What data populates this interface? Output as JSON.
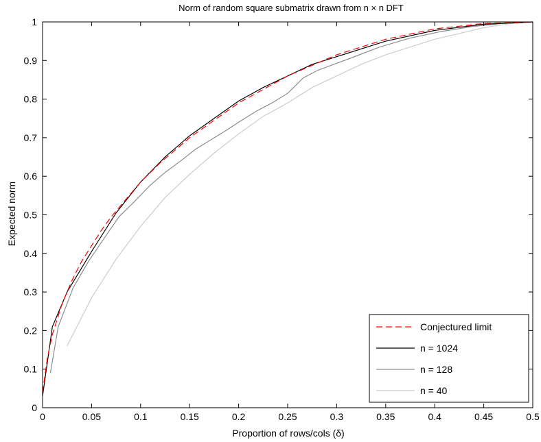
{
  "chart_data": {
    "type": "line",
    "title": "Norm of random square submatrix drawn from n × n DFT",
    "xlabel": "Proportion of rows/cols (δ)",
    "ylabel": "Expected norm",
    "xlim": [
      0,
      0.5
    ],
    "ylim": [
      0,
      1
    ],
    "xticks": [
      0,
      0.05,
      0.1,
      0.15,
      0.2,
      0.25,
      0.3,
      0.35,
      0.4,
      0.45,
      0.5
    ],
    "xtick_labels": [
      "0",
      "0.05",
      "0.1",
      "0.15",
      "0.2",
      "0.25",
      "0.3",
      "0.35",
      "0.4",
      "0.45",
      "0.5"
    ],
    "yticks": [
      0,
      0.1,
      0.2,
      0.3,
      0.4,
      0.5,
      0.6,
      0.7,
      0.8,
      0.9,
      1
    ],
    "ytick_labels": [
      "0",
      "0.1",
      "0.2",
      "0.3",
      "0.4",
      "0.5",
      "0.6",
      "0.7",
      "0.8",
      "0.9",
      "1"
    ],
    "grid": false,
    "legend_position": "bottom-right",
    "series": [
      {
        "name": "Conjectured limit",
        "color": "#ff0000",
        "dash": "dashed",
        "x": [
          0,
          0.005,
          0.01,
          0.02,
          0.03,
          0.04,
          0.05,
          0.06,
          0.07,
          0.08,
          0.1,
          0.12,
          0.15,
          0.2,
          0.25,
          0.3,
          0.35,
          0.4,
          0.45,
          0.5
        ],
        "y": [
          0.04,
          0.13,
          0.19,
          0.27,
          0.33,
          0.38,
          0.42,
          0.46,
          0.495,
          0.525,
          0.585,
          0.635,
          0.7,
          0.79,
          0.86,
          0.915,
          0.955,
          0.982,
          0.996,
          1.0
        ]
      },
      {
        "name": "n = 1024",
        "color": "#000000",
        "dash": "solid",
        "x": [
          0,
          0.01,
          0.025,
          0.05,
          0.075,
          0.1,
          0.125,
          0.15,
          0.175,
          0.2,
          0.225,
          0.25,
          0.275,
          0.3,
          0.35,
          0.4,
          0.45,
          0.5
        ],
        "y": [
          0.03,
          0.21,
          0.3,
          0.405,
          0.505,
          0.585,
          0.65,
          0.705,
          0.75,
          0.795,
          0.83,
          0.86,
          0.89,
          0.91,
          0.95,
          0.978,
          0.994,
          1.0
        ]
      },
      {
        "name": "n = 128",
        "color": "#8c8c8c",
        "dash": "solid",
        "x": [
          0.008,
          0.016,
          0.031,
          0.047,
          0.063,
          0.078,
          0.094,
          0.109,
          0.125,
          0.141,
          0.156,
          0.172,
          0.188,
          0.203,
          0.219,
          0.234,
          0.25,
          0.266,
          0.281,
          0.297,
          0.313,
          0.344,
          0.375,
          0.406,
          0.438,
          0.469,
          0.5
        ],
        "y": [
          0.09,
          0.21,
          0.31,
          0.38,
          0.44,
          0.495,
          0.535,
          0.575,
          0.61,
          0.64,
          0.67,
          0.695,
          0.72,
          0.745,
          0.77,
          0.79,
          0.815,
          0.855,
          0.875,
          0.89,
          0.905,
          0.935,
          0.958,
          0.975,
          0.988,
          0.996,
          1.0
        ]
      },
      {
        "name": "n = 40",
        "color": "#cccccc",
        "dash": "solid",
        "x": [
          0.025,
          0.05,
          0.075,
          0.1,
          0.125,
          0.15,
          0.175,
          0.2,
          0.225,
          0.25,
          0.275,
          0.3,
          0.325,
          0.35,
          0.375,
          0.4,
          0.425,
          0.45,
          0.475,
          0.5
        ],
        "y": [
          0.16,
          0.285,
          0.385,
          0.47,
          0.545,
          0.605,
          0.66,
          0.71,
          0.755,
          0.79,
          0.83,
          0.86,
          0.89,
          0.915,
          0.935,
          0.955,
          0.97,
          0.985,
          0.995,
          1.0
        ]
      }
    ]
  }
}
